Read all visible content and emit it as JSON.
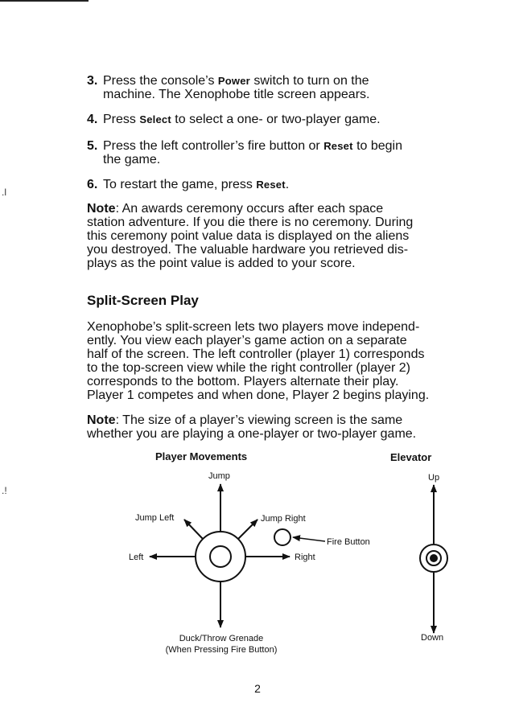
{
  "steps": [
    {
      "num": "3.",
      "pre": "Press the console’s ",
      "kw": "Power",
      "post": " switch to turn on the",
      "line2": "machine. The Xenophobe title screen appears."
    },
    {
      "num": "4.",
      "pre": "Press ",
      "kw": "Select",
      "post": " to select a one- or two-player game.",
      "line2": ""
    },
    {
      "num": "5.",
      "pre": "Press the left controller’s fire button or ",
      "kw": "Reset",
      "post": " to begin",
      "line2": "the game."
    },
    {
      "num": "6.",
      "pre": "To restart the game, press ",
      "kw": "Reset",
      "post": ".",
      "line2": ""
    }
  ],
  "note1": {
    "label": "Note",
    "lines": [
      ": An awards ceremony occurs after each space",
      "station adventure. If you die there is no ceremony. During",
      "this ceremony point value data is displayed on the aliens",
      "you destroyed. The valuable hardware you retrieved dis-",
      "plays as the point value is added to your score."
    ]
  },
  "section_heading": "Split-Screen Play",
  "split_para": [
    "Xenophobe’s split-screen lets two players move independ-",
    "ently. You view each player’s game action on a separate",
    "half of the screen. The left controller (player 1) corresponds",
    "to the top-screen view while the right controller (player 2)",
    "corresponds to the bottom. Players alternate their play.",
    "Player 1 competes and when done, Player 2 begins playing."
  ],
  "note2": {
    "label": "Note",
    "lines": [
      ": The size of a player’s viewing screen is the same",
      "whether you are playing a one-player or two-player game."
    ]
  },
  "diagram": {
    "movements_title": "Player Movements",
    "elevator_title": "Elevator",
    "jump": "Jump",
    "jump_left": "Jump Left",
    "jump_right": "Jump Right",
    "left": "Left",
    "right": "Right",
    "fire_button": "Fire Button",
    "duck_line1": "Duck/Throw Grenade",
    "duck_line2": "(When Pressing Fire Button)",
    "up": "Up",
    "down": "Down"
  },
  "page_number": "2"
}
